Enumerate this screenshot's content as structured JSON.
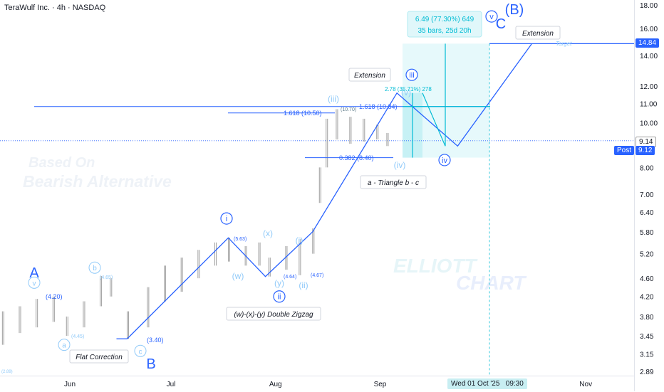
{
  "header": {
    "title": "TeraWulf Inc. · 4h · NASDAQ"
  },
  "colors": {
    "wave_line": "#2962ff",
    "cyan": "#00bcd4",
    "pale_blue": "#90caf9",
    "target_box": "#e0f7fa",
    "bar_gray": "#9e9e9e"
  },
  "chart_data": {
    "type": "line",
    "scale": "log",
    "ylim": [
      2.8,
      18.6
    ],
    "y_ticks": [
      "18.00",
      "16.00",
      "14.00",
      "12.00",
      "11.00",
      "10.00",
      "9.00",
      "8.00",
      "7.00",
      "6.40",
      "5.80",
      "5.20",
      "4.60",
      "4.20",
      "3.80",
      "3.45",
      "3.15",
      "2.89"
    ],
    "x_ticks": [
      "Jun",
      "Jul",
      "Aug",
      "Sep",
      "Oct",
      "Nov"
    ],
    "x_tick_dates": [
      "2025-06-01",
      "2025-07-01",
      "2025-08-01",
      "2025-09-01",
      "2025-10-01",
      "2025-11-01"
    ],
    "xlim": [
      "2025-05-10",
      "2025-11-20"
    ],
    "series": [
      {
        "points": [
          {
            "x": "2025-06-18",
            "y": 3.4
          },
          {
            "x": "2025-07-18",
            "y": 5.63
          },
          {
            "x": "2025-07-29",
            "y": 4.64
          },
          {
            "x": "2025-08-12",
            "y": 5.8
          },
          {
            "x": "2025-09-06",
            "y": 11.6
          },
          {
            "x": "2025-09-24",
            "y": 8.9
          },
          {
            "x": "2025-10-16",
            "y": 14.84
          }
        ]
      }
    ],
    "price_candles": [
      {
        "x": "2025-05-12",
        "low": 3.3,
        "high": 3.9
      },
      {
        "x": "2025-05-17",
        "low": 3.5,
        "high": 4.0
      },
      {
        "x": "2025-05-22",
        "low": 3.6,
        "high": 4.15
      },
      {
        "x": "2025-05-27",
        "low": 3.7,
        "high": 4.2
      },
      {
        "x": "2025-05-31",
        "low": 3.45,
        "high": 3.8
      },
      {
        "x": "2025-06-05",
        "low": 3.6,
        "high": 4.1
      },
      {
        "x": "2025-06-10",
        "low": 4.0,
        "high": 4.65
      },
      {
        "x": "2025-06-13",
        "low": 4.2,
        "high": 4.6
      },
      {
        "x": "2025-06-18",
        "low": 3.4,
        "high": 3.9
      },
      {
        "x": "2025-06-24",
        "low": 3.6,
        "high": 4.4
      },
      {
        "x": "2025-06-29",
        "low": 4.1,
        "high": 4.9
      },
      {
        "x": "2025-07-04",
        "low": 4.3,
        "high": 5.1
      },
      {
        "x": "2025-07-09",
        "low": 4.6,
        "high": 5.3
      },
      {
        "x": "2025-07-14",
        "low": 4.9,
        "high": 5.5
      },
      {
        "x": "2025-07-18",
        "low": 5.0,
        "high": 5.63
      },
      {
        "x": "2025-07-23",
        "low": 4.9,
        "high": 5.4
      },
      {
        "x": "2025-07-27",
        "low": 4.9,
        "high": 5.5
      },
      {
        "x": "2025-07-30",
        "low": 4.64,
        "high": 5.1
      },
      {
        "x": "2025-08-04",
        "low": 4.8,
        "high": 5.4
      },
      {
        "x": "2025-08-08",
        "low": 4.67,
        "high": 5.6
      },
      {
        "x": "2025-08-12",
        "low": 5.2,
        "high": 5.9
      },
      {
        "x": "2025-08-14",
        "low": 6.7,
        "high": 8.0
      },
      {
        "x": "2025-08-16",
        "low": 8.0,
        "high": 10.2
      },
      {
        "x": "2025-08-19",
        "low": 9.2,
        "high": 10.7
      },
      {
        "x": "2025-08-23",
        "low": 9.0,
        "high": 10.3
      },
      {
        "x": "2025-08-27",
        "low": 9.1,
        "high": 10.2
      },
      {
        "x": "2025-08-31",
        "low": 9.2,
        "high": 9.9
      },
      {
        "x": "2025-09-03",
        "low": 8.9,
        "high": 9.5
      }
    ]
  },
  "price_axis": {
    "last_price": "9.14",
    "target_price": "14.84",
    "post_label": "Post",
    "post_price": "9.12"
  },
  "time_axis": {
    "crosshair_label": "Wed 01 Oct '25",
    "crosshair_time": "09:30"
  },
  "annotations": {
    "wave_A": "A",
    "wave_B": "B",
    "wave_C": "C",
    "wave_B_paren": "(B)",
    "wave_i_circ": "i",
    "wave_ii_circ": "ii",
    "wave_iii_circ": "iii",
    "wave_iv_circ": "iv",
    "wave_v_circ": "v",
    "wave_v_small": "v",
    "wave_a_small": "a",
    "wave_b_small": "b",
    "wave_c_small": "c",
    "wave_w": "(w)",
    "wave_x": "(x)",
    "wave_y": "(y)",
    "wave_i_paren": "(i)",
    "wave_ii_paren": "(ii)",
    "wave_iii_paren": "(iii)",
    "wave_iv_paren": "(iv)",
    "wave_v_paren": "(v)",
    "price_4_20": "(4.20)",
    "price_4_45": "(4.45)",
    "price_4_65": "(4.65)",
    "price_3_40": "(3.40)",
    "price_2_89": "(2.89)",
    "price_5_63": "(5.63)",
    "price_4_64": "(4.64)",
    "price_4_67": "(4.67)",
    "price_10_70": "(10.70)",
    "fib_1618_a": "1.618 (10.50)",
    "fib_1618_b": "1.618 (10.84)",
    "fib_0382": "0.382 (8.40)",
    "fib_278": "2.78 (35.71%) 278",
    "target_label": "Target",
    "measure_line1": "6.49 (77.30%) 649",
    "measure_line2": "35 bars, 25d 20h",
    "callout_flat": "Flat Correction",
    "callout_double_zigzag": "(w)-(x)-(y) Double Zigzag",
    "callout_triangle": "a - Triangle b - c",
    "callout_extension_1": "Extension",
    "callout_extension_2": "Extension"
  },
  "watermarks": {
    "based_on": "Based On",
    "bearish": "Bearish Alternative",
    "elliott": "ELLIOTT",
    "chart": "CHART"
  }
}
